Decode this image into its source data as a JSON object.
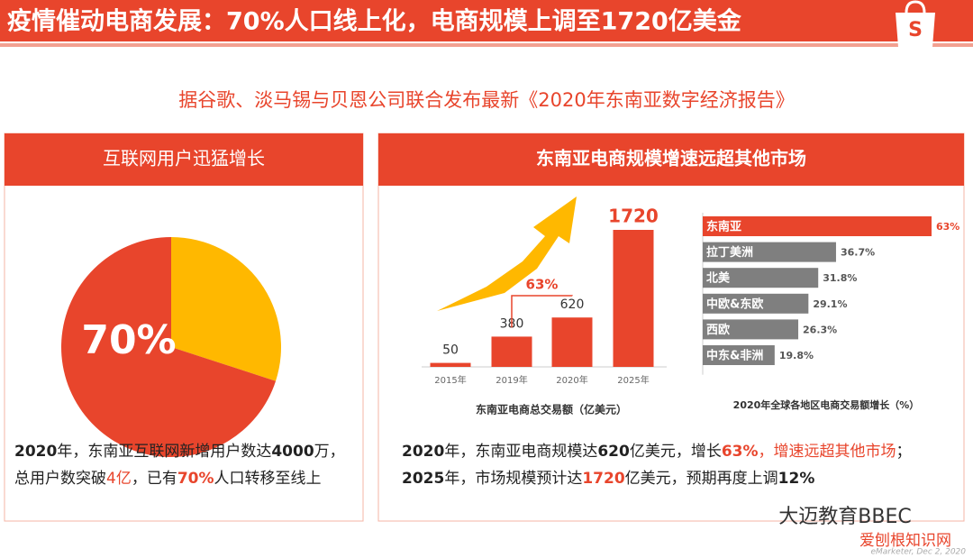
{
  "header": {
    "title": "疫情催动电商发展：70%人口线上化，电商规模上调至1720亿美金"
  },
  "subtitle": "据谷歌、淡马锡与贝恩公司联合发布最新《2020年东南亚数字经济报告》",
  "panels": [
    {
      "title": "互联网用户迅猛增长",
      "lines": [
        [
          {
            "text": "2020",
            "style": "bold"
          },
          {
            "text": "年，东南亚互联网新增用户数达",
            "style": "plain"
          },
          {
            "text": "4000",
            "style": "bold"
          },
          {
            "text": "万，",
            "style": "plain"
          }
        ],
        [
          {
            "text": "总用户数突破",
            "style": "plain"
          },
          {
            "text": "4亿",
            "style": "red"
          },
          {
            "text": "，已有",
            "style": "plain"
          },
          {
            "text": "70%",
            "style": "redbold"
          },
          {
            "text": "人口转移至线上",
            "style": "plain"
          }
        ]
      ]
    },
    {
      "title": "东南亚电商规模增速远超其他市场",
      "lines": [
        [
          {
            "text": "2020",
            "style": "bold"
          },
          {
            "text": "年，东南亚电商规模达",
            "style": "plain"
          },
          {
            "text": "620",
            "style": "bold"
          },
          {
            "text": "亿美元，增长",
            "style": "plain"
          },
          {
            "text": "63%",
            "style": "redbold"
          },
          {
            "text": "，增速远超其他市场",
            "style": "red"
          },
          {
            "text": "；",
            "style": "plain"
          }
        ],
        [
          {
            "text": "2025",
            "style": "bold"
          },
          {
            "text": "年，市场规模预计达",
            "style": "plain"
          },
          {
            "text": "1720",
            "style": "redbold"
          },
          {
            "text": "亿美元，预期再度上调",
            "style": "plain"
          },
          {
            "text": "12%",
            "style": "bold"
          }
        ]
      ]
    }
  ],
  "watermark": {
    "brand": "大迈教育BBEC",
    "site": "爱刨根知识网",
    "source": "eMarketer, Dec 2, 2020"
  },
  "chart_data": [
    {
      "type": "pie",
      "values": [
        70,
        30
      ],
      "value_labels": [
        "70%",
        null
      ],
      "colors": [
        "#e8452c",
        "#ffb800"
      ]
    },
    {
      "type": "bar",
      "categories": [
        "2015年",
        "2019年",
        "2020年",
        "2025年"
      ],
      "values": [
        50,
        380,
        620,
        1720
      ],
      "color": "#e8452c",
      "ylim": [
        0,
        1720
      ],
      "xlabel": "东南亚电商总交易额（亿美元）",
      "annotation": "63%"
    },
    {
      "type": "hbar",
      "categories": [
        "东南亚",
        "拉丁美洲",
        "北美",
        "中欧&东欧",
        "西欧",
        "中东&非洲"
      ],
      "values": [
        63,
        36.7,
        31.8,
        29.1,
        26.3,
        19.8
      ],
      "value_labels": [
        "63%",
        "36.7%",
        "31.8%",
        "29.1%",
        "26.3%",
        "19.8%"
      ],
      "colors": [
        "#e8452c",
        "#7f7f7f",
        "#7f7f7f",
        "#7f7f7f",
        "#7f7f7f",
        "#7f7f7f"
      ],
      "xlim": [
        0,
        63
      ],
      "title": "2020年全球各地区电商交易额增长（%）"
    }
  ]
}
